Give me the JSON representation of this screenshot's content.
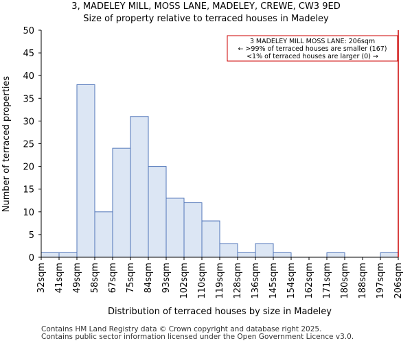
{
  "chart_data": {
    "type": "bar",
    "title": "3, MADELEY MILL, MOSS LANE, MADELEY, CREWE, CW3 9ED",
    "subtitle": "Size of property relative to terraced houses in Madeley",
    "xlabel": "Distribution of terraced houses by size in Madeley",
    "ylabel": "Number of terraced properties",
    "ylim": [
      0,
      50
    ],
    "yticks": [
      "0",
      "5",
      "10",
      "15",
      "20",
      "25",
      "30",
      "35",
      "40",
      "45",
      "50"
    ],
    "tick_labels": [
      "32sqm",
      "41sqm",
      "49sqm",
      "58sqm",
      "67sqm",
      "75sqm",
      "84sqm",
      "93sqm",
      "102sqm",
      "110sqm",
      "119sqm",
      "128sqm",
      "136sqm",
      "145sqm",
      "154sqm",
      "162sqm",
      "171sqm",
      "180sqm",
      "188sqm",
      "197sqm",
      "206sqm"
    ],
    "values": [
      1,
      1,
      38,
      10,
      24,
      31,
      20,
      13,
      12,
      8,
      3,
      1,
      3,
      1,
      0,
      0,
      1,
      0,
      0,
      1
    ],
    "marker": {
      "label": "206sqm",
      "color": "#cc0000"
    },
    "annotation": [
      "3 MADELEY MILL MOSS LANE: 206sqm",
      "← >99% of terraced houses are smaller (167)",
      "<1% of terraced houses are larger (0) →"
    ],
    "colors": {
      "bar_fill": "#dce6f4",
      "bar_stroke": "#4f74b8",
      "marker": "#cc0000"
    }
  },
  "footer": {
    "line1": "Contains HM Land Registry data © Crown copyright and database right 2025.",
    "line2": "Contains public sector information licensed under the Open Government Licence v3.0."
  }
}
